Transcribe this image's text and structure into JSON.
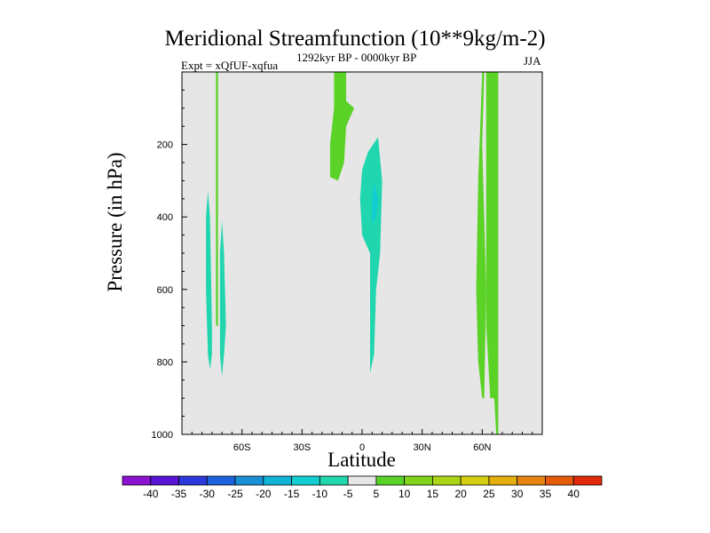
{
  "chart_data": {
    "type": "filled-contour",
    "title": "Meridional Streamfunction (10**9kg/m-2)",
    "left_label": "Expt = xQfUF-xqfua",
    "center_label": "1292kyr BP - 0000kyr BP",
    "right_label": "JJA",
    "xlabel": "Latitude",
    "ylabel": "Pressure (in hPa)",
    "xlim": [
      -90,
      90
    ],
    "ylim": [
      1000,
      0
    ],
    "x_ticks": [
      {
        "value": -60,
        "label": "60S"
      },
      {
        "value": -30,
        "label": "30S"
      },
      {
        "value": 0,
        "label": "0"
      },
      {
        "value": 30,
        "label": "30N"
      },
      {
        "value": 60,
        "label": "60N"
      }
    ],
    "y_ticks": [
      {
        "value": 200,
        "label": "200"
      },
      {
        "value": 400,
        "label": "400"
      },
      {
        "value": 600,
        "label": "600"
      },
      {
        "value": 800,
        "label": "800"
      },
      {
        "value": 1000,
        "label": "1000"
      }
    ],
    "background_color": "#e6e6e6",
    "colorbar": {
      "levels": [
        "-40",
        "-35",
        "-30",
        "-25",
        "-20",
        "-15",
        "-10",
        "-5",
        "5",
        "10",
        "15",
        "20",
        "25",
        "30",
        "35",
        "40"
      ],
      "colors": [
        "#8a12d0",
        "#5714d4",
        "#2a38dc",
        "#1b62dc",
        "#1890d6",
        "#10b4d6",
        "#10ced2",
        "#20d6ae",
        "#e6e6e6",
        "#5ad226",
        "#80d21a",
        "#aad414",
        "#d4ce10",
        "#e4ae0c",
        "#e6840e",
        "#e65a0c",
        "#e02a0a"
      ]
    },
    "regions": [
      {
        "name": "nh-polar-positive-column",
        "range": "5 to 10",
        "color": "#5ad226",
        "outline": [
          [
            62,
            0
          ],
          [
            68,
            0
          ],
          [
            68,
            1000
          ],
          [
            67,
            1000
          ],
          [
            66,
            900
          ],
          [
            64,
            900
          ],
          [
            62,
            700
          ],
          [
            62,
            300
          ]
        ]
      },
      {
        "name": "nh-subpolar-positive-column",
        "range": "5 to 10",
        "color": "#5ad226",
        "outline": [
          [
            60,
            0
          ],
          [
            61,
            0
          ],
          [
            60,
            200
          ],
          [
            61,
            400
          ],
          [
            62,
            600
          ],
          [
            61,
            900
          ],
          [
            60,
            900
          ],
          [
            58,
            800
          ],
          [
            57,
            600
          ],
          [
            58,
            300
          ],
          [
            59,
            150
          ]
        ]
      },
      {
        "name": "equatorial-negative-cell",
        "range": "-10 to -5",
        "color": "#20d6ae",
        "outline": [
          [
            8,
            180
          ],
          [
            10,
            300
          ],
          [
            9,
            500
          ],
          [
            7,
            600
          ],
          [
            6,
            780
          ],
          [
            4,
            830
          ],
          [
            4,
            500
          ],
          [
            0,
            450
          ],
          [
            -1,
            350
          ],
          [
            0,
            270
          ],
          [
            3,
            220
          ]
        ]
      },
      {
        "name": "equatorial-negative-core",
        "range": "-15 to -10",
        "color": "#10ced2",
        "outline": [
          [
            6,
            300
          ],
          [
            8,
            350
          ],
          [
            7,
            400
          ],
          [
            5,
            420
          ],
          [
            5,
            350
          ]
        ]
      },
      {
        "name": "sh-tropical-positive-upper",
        "range": "5 to 10",
        "color": "#5ad226",
        "outline": [
          [
            -14,
            0
          ],
          [
            -8,
            0
          ],
          [
            -8,
            80
          ],
          [
            -4,
            100
          ],
          [
            -8,
            150
          ],
          [
            -9,
            250
          ],
          [
            -12,
            300
          ],
          [
            -16,
            290
          ],
          [
            -16,
            200
          ],
          [
            -14,
            100
          ]
        ]
      },
      {
        "name": "sh-highlat-negative-a",
        "range": "-10 to -5",
        "color": "#20d6ae",
        "outline": [
          [
            -77,
            330
          ],
          [
            -76,
            400
          ],
          [
            -75,
            700
          ],
          [
            -75,
            780
          ],
          [
            -76,
            820
          ],
          [
            -77,
            780
          ],
          [
            -78,
            600
          ],
          [
            -78,
            400
          ]
        ]
      },
      {
        "name": "sh-highlat-negative-b",
        "range": "-10 to -5",
        "color": "#20d6ae",
        "outline": [
          [
            -70,
            410
          ],
          [
            -69,
            500
          ],
          [
            -68,
            700
          ],
          [
            -69,
            780
          ],
          [
            -70,
            840
          ],
          [
            -71,
            780
          ],
          [
            -71,
            600
          ],
          [
            -71,
            500
          ]
        ]
      },
      {
        "name": "sh-highlat-positive-thin",
        "range": "5 to 10",
        "color": "#5ad226",
        "outline": [
          [
            -73,
            0
          ],
          [
            -72,
            0
          ],
          [
            -72,
            700
          ],
          [
            -73,
            700
          ]
        ]
      }
    ]
  }
}
